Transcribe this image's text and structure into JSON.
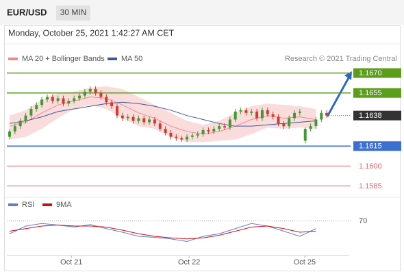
{
  "header": {
    "symbol": "EUR/USD",
    "interval": "30 MIN",
    "date": "Monday, October 25, 2021 1:42:27 AM CET"
  },
  "chart_data": [
    {
      "type": "candlestick",
      "credit": "Research © 2021 Trading Central",
      "ylim": [
        1.1578,
        1.1676
      ],
      "up_color": "#3f9a2f",
      "down_color": "#d33a2f",
      "open": [
        1.1622,
        1.1626,
        1.163,
        1.1634,
        1.1638,
        1.1643,
        1.1646,
        1.165,
        1.1652,
        1.1649,
        1.1651,
        1.1647,
        1.1649,
        1.1651,
        1.1653,
        1.1656,
        1.1658,
        1.1655,
        1.1652,
        1.1648,
        1.1645,
        1.1638,
        1.1636,
        1.1637,
        1.1634,
        1.1636,
        1.1633,
        1.1635,
        1.1632,
        1.1628,
        1.1625,
        1.1622,
        1.1621,
        1.162,
        1.1622,
        1.1623,
        1.1624,
        1.1627,
        1.1626,
        1.1628,
        1.163,
        1.1629,
        1.1635,
        1.1641,
        1.1642,
        1.164,
        1.1641,
        1.1636,
        1.1642,
        1.1639,
        1.1637,
        1.1632,
        1.163,
        1.1636,
        1.164,
        1.1619,
        1.1628,
        1.163,
        1.1635,
        1.164
      ],
      "high": [
        1.1628,
        1.1632,
        1.1636,
        1.164,
        1.1645,
        1.1648,
        1.1652,
        1.1654,
        1.1654,
        1.1653,
        1.1653,
        1.1651,
        1.1653,
        1.1655,
        1.1658,
        1.166,
        1.166,
        1.1657,
        1.1654,
        1.165,
        1.1647,
        1.164,
        1.1639,
        1.1639,
        1.1638,
        1.1638,
        1.1637,
        1.1637,
        1.1634,
        1.163,
        1.1627,
        1.1624,
        1.1623,
        1.1624,
        1.1625,
        1.1626,
        1.1629,
        1.1629,
        1.163,
        1.1632,
        1.1632,
        1.1637,
        1.1643,
        1.1644,
        1.1644,
        1.1643,
        1.1643,
        1.1644,
        1.1644,
        1.1641,
        1.1639,
        1.1634,
        1.1638,
        1.1642,
        1.1643,
        1.1629,
        1.1632,
        1.1637,
        1.1642,
        1.1642
      ],
      "low": [
        1.162,
        1.1624,
        1.1628,
        1.1632,
        1.1636,
        1.1641,
        1.1644,
        1.1648,
        1.1647,
        1.1647,
        1.1645,
        1.1645,
        1.1647,
        1.1649,
        1.1651,
        1.1654,
        1.1653,
        1.165,
        1.1646,
        1.1643,
        1.1636,
        1.1634,
        1.1634,
        1.1632,
        1.1632,
        1.1631,
        1.1631,
        1.163,
        1.1626,
        1.1623,
        1.162,
        1.1619,
        1.1618,
        1.1618,
        1.162,
        1.1621,
        1.1622,
        1.1624,
        1.1624,
        1.1626,
        1.1627,
        1.1627,
        1.1633,
        1.1639,
        1.1638,
        1.1638,
        1.1634,
        1.1634,
        1.1637,
        1.1635,
        1.163,
        1.1628,
        1.1628,
        1.1634,
        1.1638,
        1.1617,
        1.1626,
        1.1628,
        1.1633,
        1.1636
      ],
      "close": [
        1.1626,
        1.163,
        1.1634,
        1.1638,
        1.1643,
        1.1646,
        1.165,
        1.1652,
        1.1649,
        1.1651,
        1.1647,
        1.1649,
        1.1651,
        1.1653,
        1.1656,
        1.1658,
        1.1655,
        1.1652,
        1.1648,
        1.1645,
        1.1638,
        1.1636,
        1.1637,
        1.1634,
        1.1636,
        1.1633,
        1.1635,
        1.1632,
        1.1628,
        1.1625,
        1.1622,
        1.1621,
        1.162,
        1.1622,
        1.1623,
        1.1624,
        1.1627,
        1.1626,
        1.1628,
        1.163,
        1.1629,
        1.1635,
        1.1641,
        1.1642,
        1.164,
        1.1641,
        1.1636,
        1.1642,
        1.1639,
        1.1637,
        1.1632,
        1.163,
        1.1636,
        1.164,
        1.1641,
        1.1628,
        1.163,
        1.1635,
        1.164,
        1.1638
      ],
      "xticks": [
        {
          "value": 11.5,
          "label": "Oct 21"
        },
        {
          "value": 33.4,
          "label": "Oct 22"
        },
        {
          "value": 54.9,
          "label": "Oct 25"
        }
      ],
      "levels": [
        {
          "value": 1.167,
          "label": "1.1670",
          "color": "#5a9e1a",
          "boxed": true
        },
        {
          "value": 1.1655,
          "color": "#5a9e1a",
          "boxed": true
        },
        {
          "value": 1.1638,
          "color": "#333333",
          "boxed": true,
          "current": true
        },
        {
          "value": 1.1615,
          "color": "#3b6fd1",
          "boxed": true
        },
        {
          "value": 1.16,
          "label": "1.1600",
          "color": "#e06060",
          "boxed": false
        },
        {
          "value": 1.1585,
          "color": "#e06060",
          "boxed": false
        }
      ],
      "series": [
        {
          "name": "MA 20 + Bollinger Bands",
          "color": "#f08a8a",
          "x": [
            0,
            3,
            6,
            9,
            12,
            15,
            18,
            21,
            24,
            27,
            30,
            33,
            36,
            39,
            42,
            45,
            48,
            51,
            54,
            57
          ],
          "values": [
            1.163,
            1.1633,
            1.164,
            1.1646,
            1.1649,
            1.1652,
            1.1651,
            1.1646,
            1.164,
            1.1636,
            1.163,
            1.1626,
            1.1624,
            1.1626,
            1.163,
            1.1635,
            1.1638,
            1.1636,
            1.1637,
            1.1635
          ],
          "upper": [
            1.1638,
            1.1642,
            1.165,
            1.1655,
            1.1656,
            1.1659,
            1.166,
            1.1658,
            1.1652,
            1.1646,
            1.164,
            1.1634,
            1.1631,
            1.1634,
            1.164,
            1.1645,
            1.1647,
            1.1646,
            1.1645,
            1.1643
          ],
          "lower": [
            1.162,
            1.1622,
            1.1628,
            1.1636,
            1.1643,
            1.1646,
            1.1643,
            1.1636,
            1.163,
            1.1628,
            1.1622,
            1.1618,
            1.1618,
            1.1619,
            1.162,
            1.1624,
            1.1629,
            1.1628,
            1.1629,
            1.1628
          ]
        },
        {
          "name": "MA 50",
          "color": "#3a5a9a",
          "x": [
            0,
            3,
            6,
            9,
            12,
            15,
            18,
            21,
            24,
            27,
            30,
            33,
            36,
            39,
            42,
            45,
            48,
            51,
            54,
            57
          ],
          "values": [
            1.1632,
            1.1634,
            1.1637,
            1.1641,
            1.1643,
            1.1645,
            1.1647,
            1.1648,
            1.1647,
            1.1645,
            1.1642,
            1.1638,
            1.1635,
            1.1632,
            1.163,
            1.163,
            1.1631,
            1.1632,
            1.1633,
            1.1634
          ]
        }
      ]
    },
    {
      "type": "line",
      "ylim": [
        0,
        100
      ],
      "yticks": [
        70
      ],
      "x": [
        0,
        3,
        6,
        9,
        12,
        15,
        18,
        21,
        24,
        27,
        30,
        33,
        36,
        39,
        42,
        45,
        48,
        51,
        54,
        57
      ],
      "series": [
        {
          "name": "RSI",
          "color": "#5b7fd6",
          "values": [
            45,
            60,
            65,
            62,
            58,
            63,
            55,
            48,
            40,
            38,
            35,
            30,
            40,
            45,
            55,
            65,
            60,
            50,
            40,
            55
          ]
        },
        {
          "name": "9MA",
          "color": "#cc1111",
          "values": [
            50,
            55,
            60,
            62,
            60,
            60,
            58,
            52,
            45,
            40,
            37,
            35,
            37,
            42,
            50,
            58,
            60,
            55,
            48,
            50
          ]
        }
      ]
    }
  ]
}
